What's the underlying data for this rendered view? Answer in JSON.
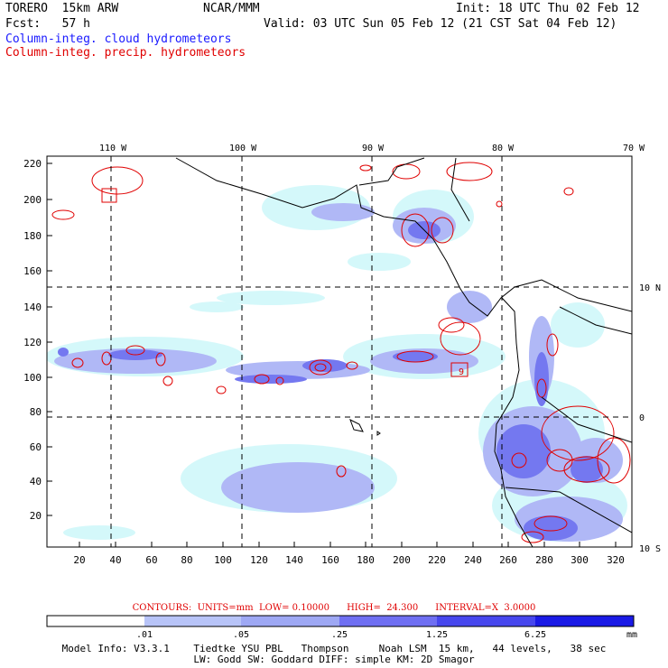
{
  "header": {
    "model": "TORERO  15km ARW",
    "org": "NCAR/MMM",
    "init": "Init: 18 UTC Thu 02 Feb 12",
    "fcst": "Fcst:   57 h",
    "valid": "Valid: 03 UTC Sun 05 Feb 12 (21 CST Sat 04 Feb 12)",
    "cloud_label": "Column-integ. cloud hydrometeors",
    "precip_label": "Column-integ. precip. hydrometeors"
  },
  "map": {
    "lon_labels": [
      "110 W",
      "100 W",
      "90 W",
      "80 W",
      "70 W"
    ],
    "lat_labels": [
      "10 N",
      "0",
      "10 S"
    ],
    "y_ticks": [
      "220",
      "200",
      "180",
      "160",
      "140",
      "120",
      "100",
      "80",
      "60",
      "40",
      "20"
    ],
    "x_ticks": [
      "20",
      "40",
      "60",
      "80",
      "100",
      "120",
      "140",
      "160",
      "180",
      "200",
      "220",
      "240",
      "260",
      "280",
      "300",
      "320"
    ],
    "marker_label": "9"
  },
  "contour_info": {
    "text": "CONTOURS:  UNITS=mm  LOW= 0.10000      HIGH=  24.300      INTERVAL=X  3.0000"
  },
  "colorbar": {
    "labels": [
      ".01",
      ".05",
      ".25",
      "1.25",
      "6.25"
    ],
    "unit": "mm",
    "colors": [
      "#ffffff",
      "#d4f8fa",
      "#b8c4f8",
      "#9ea8f4",
      "#6f6ff2",
      "#4747ee",
      "#1a1ae6"
    ]
  },
  "footer": {
    "line1": "Model Info: V3.3.1    Tiedtke YSU PBL   Thompson     Noah LSM  15 km,   44 levels,   38 sec",
    "line2": "LW: Godd SW: Goddard DIFF: simple KM: 2D Smagor"
  }
}
